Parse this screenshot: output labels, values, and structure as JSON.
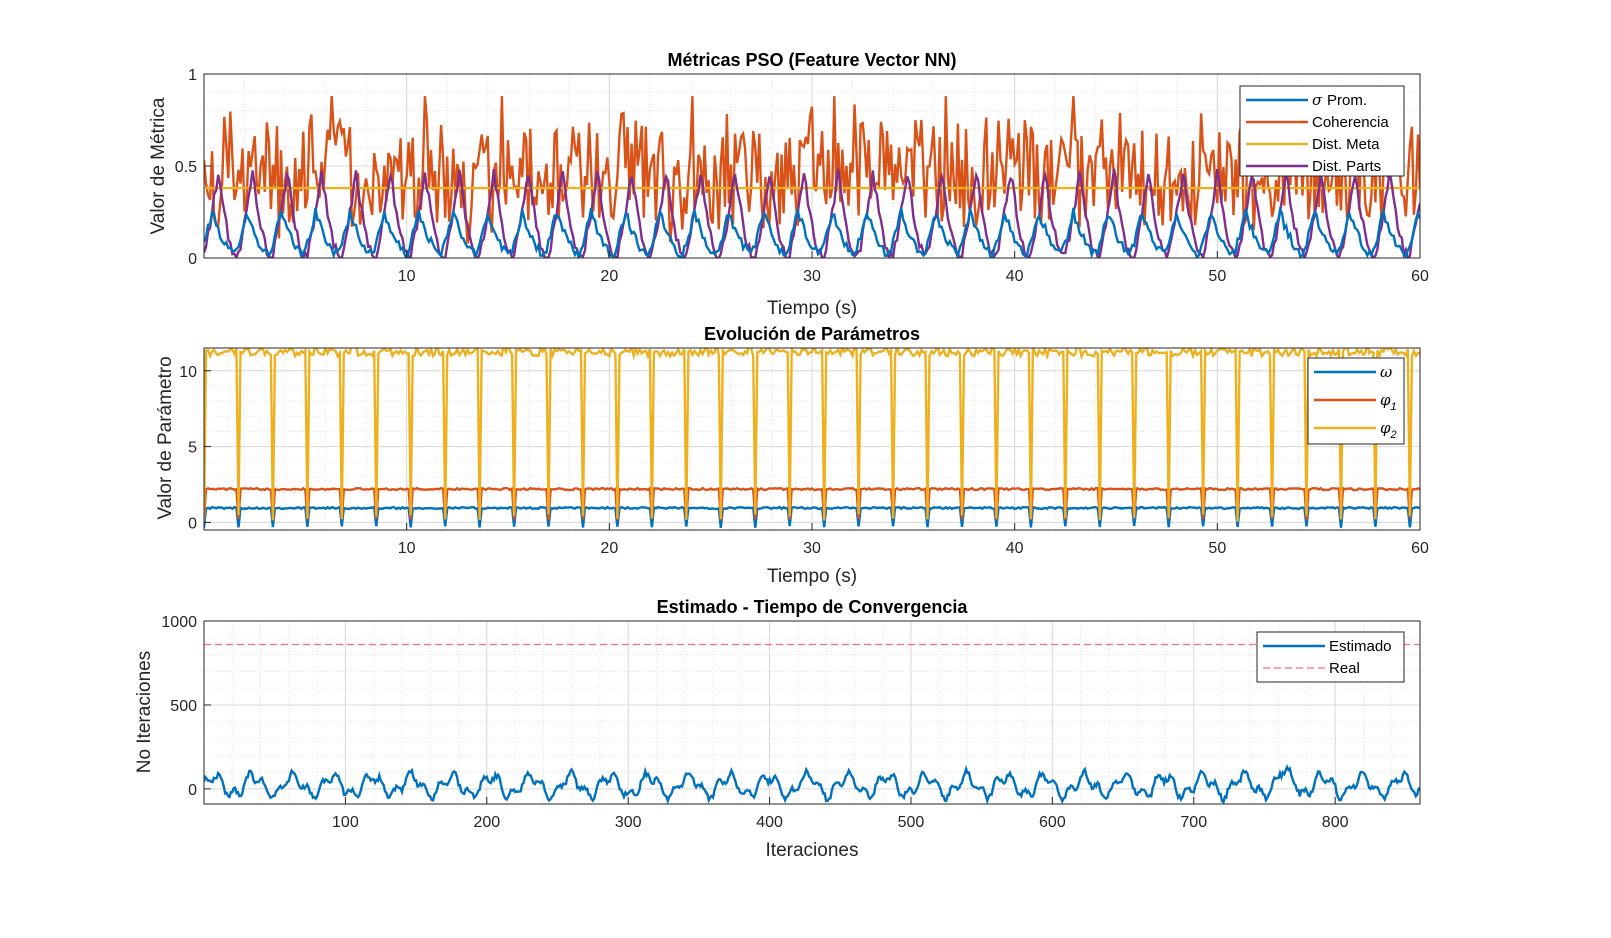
{
  "chart_data": [
    {
      "type": "line",
      "title": "Métricas PSO (Feature Vector NN)",
      "xlabel": "Tiempo (s)",
      "ylabel": "Valor de Métrica",
      "xlim": [
        0,
        60
      ],
      "ylim": [
        0,
        1
      ],
      "xticks": [
        10,
        20,
        30,
        40,
        50,
        60
      ],
      "yticks": [
        0,
        0.5,
        1
      ],
      "xtick_labels": [
        "10",
        "20",
        "30",
        "40",
        "50",
        "60"
      ],
      "ytick_labels": [
        "0",
        "0.5",
        "1"
      ],
      "grid": "on (major + minor)",
      "legend_position": "top-right",
      "approximate": true,
      "description_of_values": "oscillating signals, period about 1.7 s, sampled every 0.1 s",
      "series": [
        {
          "name": "σ Prom.",
          "symbol": "σ",
          "text": "Prom.",
          "color": "#0072BD",
          "period": 1.7,
          "min": 0.02,
          "max": 0.25,
          "mean": 0.11
        },
        {
          "name": "Coherencia",
          "color": "#D95319",
          "min": 0.02,
          "max": 0.88,
          "mean": 0.45
        },
        {
          "name": "Dist. Meta",
          "color": "#EDB120",
          "value": 0.38
        },
        {
          "name": "Dist. Parts",
          "color": "#7E2F8E",
          "period": 1.7,
          "min": 0.0,
          "max": 0.47,
          "mean": 0.22
        }
      ]
    },
    {
      "type": "line",
      "title": "Evolución de Parámetros",
      "xlabel": "Tiempo (s)",
      "ylabel": "Valor de Parámetro",
      "xlim": [
        0,
        60
      ],
      "ylim": [
        -0.5,
        11.5
      ],
      "xticks": [
        10,
        20,
        30,
        40,
        50,
        60
      ],
      "yticks": [
        0,
        5,
        10
      ],
      "xtick_labels": [
        "10",
        "20",
        "30",
        "40",
        "50",
        "60"
      ],
      "ytick_labels": [
        "0",
        "5",
        "10"
      ],
      "grid": "on (major + minor)",
      "legend_position": "top-right",
      "approximate": true,
      "series": [
        {
          "name": "ω",
          "symbol": "ω",
          "sub": "",
          "color": "#0072BD",
          "period": 1.7,
          "min": -0.3,
          "max": 0.95
        },
        {
          "name": "φ1",
          "symbol": "φ",
          "sub": "1",
          "color": "#D95319",
          "period": 1.7,
          "min": 0.2,
          "max": 2.2
        },
        {
          "name": "φ2",
          "symbol": "φ",
          "sub": "2",
          "color": "#EDB120",
          "period": 1.7,
          "min": 0.3,
          "max": 11.2
        }
      ]
    },
    {
      "type": "line",
      "title": "Estimado - Tiempo de Convergencia",
      "xlabel": "Iteraciones",
      "ylabel": "No Iteraciones",
      "xlim": [
        0,
        860
      ],
      "ylim": [
        -90,
        1000
      ],
      "xticks": [
        100,
        200,
        300,
        400,
        500,
        600,
        700,
        800
      ],
      "yticks": [
        0,
        500,
        1000
      ],
      "xtick_labels": [
        "100",
        "200",
        "300",
        "400",
        "500",
        "600",
        "700",
        "800"
      ],
      "ytick_labels": [
        "0",
        "500",
        "1000"
      ],
      "grid": "on (major + minor)",
      "legend_position": "top-right",
      "approximate": true,
      "series": [
        {
          "name": "Estimado",
          "color": "#0072BD",
          "period": 28,
          "min": -80,
          "max": 140,
          "mean": 20
        },
        {
          "name": "Real",
          "color": "#FF6B7A",
          "style": "dashed",
          "value": 860
        }
      ]
    }
  ]
}
